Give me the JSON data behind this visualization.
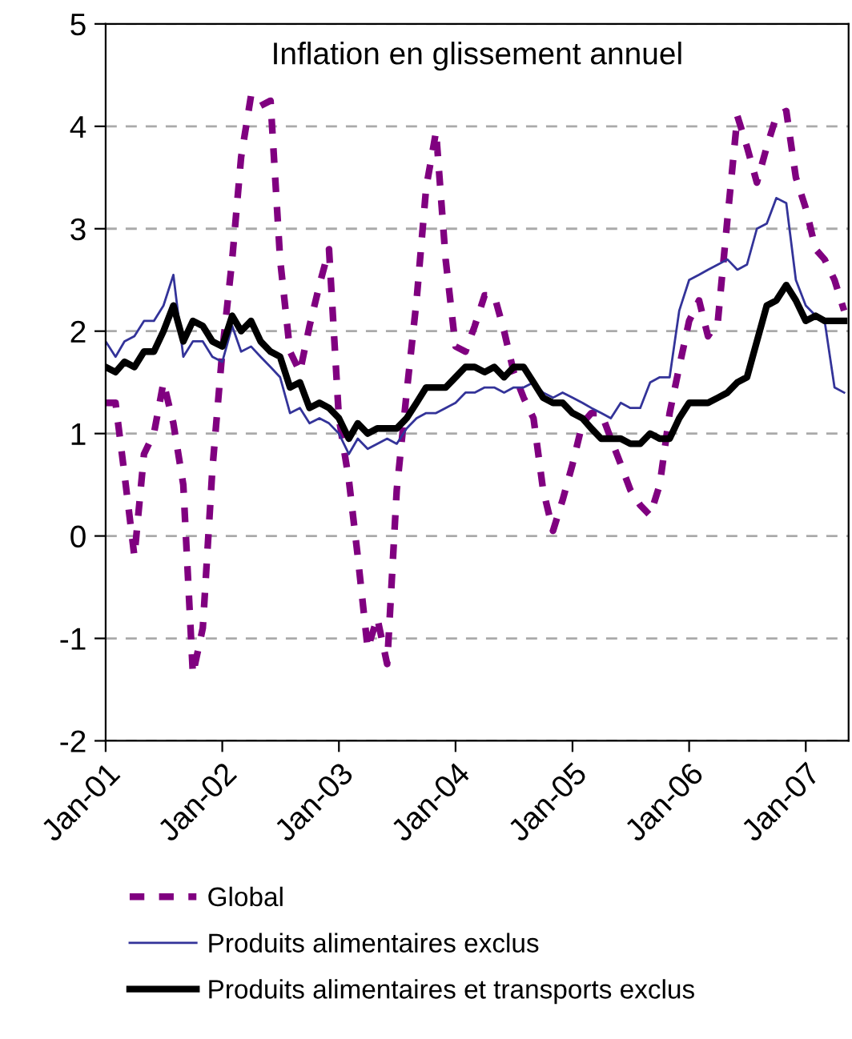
{
  "chart_data": {
    "type": "line",
    "title": "Inflation en glissement annuel",
    "x": [
      "2001-01",
      "2001-02",
      "2001-03",
      "2001-04",
      "2001-05",
      "2001-06",
      "2001-07",
      "2001-08",
      "2001-09",
      "2001-10",
      "2001-11",
      "2001-12",
      "2002-01",
      "2002-02",
      "2002-03",
      "2002-04",
      "2002-05",
      "2002-06",
      "2002-07",
      "2002-08",
      "2002-09",
      "2002-10",
      "2002-11",
      "2002-12",
      "2003-01",
      "2003-02",
      "2003-03",
      "2003-04",
      "2003-05",
      "2003-06",
      "2003-07",
      "2003-08",
      "2003-09",
      "2003-10",
      "2003-11",
      "2003-12",
      "2004-01",
      "2004-02",
      "2004-03",
      "2004-04",
      "2004-05",
      "2004-06",
      "2004-07",
      "2004-08",
      "2004-09",
      "2004-10",
      "2004-11",
      "2004-12",
      "2005-01",
      "2005-02",
      "2005-03",
      "2005-04",
      "2005-05",
      "2005-06",
      "2005-07",
      "2005-08",
      "2005-09",
      "2005-10",
      "2005-11",
      "2005-12",
      "2006-01",
      "2006-02",
      "2006-03",
      "2006-04",
      "2006-05",
      "2006-06",
      "2006-07",
      "2006-08",
      "2006-09",
      "2006-10",
      "2006-11",
      "2006-12",
      "2007-01",
      "2007-02",
      "2007-03",
      "2007-04",
      "2007-05"
    ],
    "series": [
      {
        "name": "Global",
        "color": "#800080",
        "line_style": "dashed",
        "values": [
          1.3,
          1.3,
          0.6,
          -0.2,
          0.8,
          1.0,
          1.5,
          1.1,
          0.5,
          -1.35,
          -0.9,
          0.65,
          1.8,
          2.7,
          3.7,
          4.3,
          4.2,
          4.25,
          2.7,
          1.8,
          1.6,
          2.05,
          2.45,
          2.8,
          1.15,
          0.55,
          -0.2,
          -1.1,
          -0.8,
          -1.25,
          0.45,
          1.4,
          2.3,
          3.4,
          3.95,
          2.7,
          1.85,
          1.8,
          2.05,
          2.35,
          2.35,
          2.0,
          1.6,
          1.35,
          1.15,
          0.45,
          0.05,
          0.35,
          0.7,
          1.1,
          1.2,
          1.2,
          0.95,
          0.7,
          0.45,
          0.3,
          0.2,
          0.5,
          1.2,
          1.65,
          2.1,
          2.3,
          1.95,
          2.1,
          3.1,
          4.1,
          3.8,
          3.45,
          3.8,
          4.1,
          4.15,
          3.5,
          3.2,
          2.8,
          2.7,
          2.5,
          2.2
        ]
      },
      {
        "name": "Produits alimentaires exclus",
        "color": "#333399",
        "line_style": "solid",
        "values": [
          1.9,
          1.75,
          1.9,
          1.95,
          2.1,
          2.1,
          2.25,
          2.55,
          1.75,
          1.9,
          1.9,
          1.75,
          1.7,
          2.05,
          1.8,
          1.85,
          1.75,
          1.65,
          1.55,
          1.2,
          1.25,
          1.1,
          1.15,
          1.1,
          1.0,
          0.8,
          0.95,
          0.85,
          0.9,
          0.95,
          0.9,
          1.05,
          1.15,
          1.2,
          1.2,
          1.25,
          1.3,
          1.4,
          1.4,
          1.45,
          1.45,
          1.4,
          1.45,
          1.45,
          1.5,
          1.4,
          1.35,
          1.4,
          1.35,
          1.3,
          1.25,
          1.2,
          1.15,
          1.3,
          1.25,
          1.25,
          1.5,
          1.55,
          1.55,
          2.2,
          2.5,
          2.55,
          2.6,
          2.65,
          2.7,
          2.6,
          2.65,
          3.0,
          3.05,
          3.3,
          3.25,
          2.5,
          2.25,
          2.15,
          2.1,
          1.45,
          1.4
        ]
      },
      {
        "name": "Produits alimentaires et transports exclus",
        "color": "#000000",
        "line_style": "solid",
        "values": [
          1.65,
          1.6,
          1.7,
          1.65,
          1.8,
          1.8,
          2.0,
          2.25,
          1.9,
          2.1,
          2.05,
          1.9,
          1.85,
          2.15,
          2.0,
          2.1,
          1.9,
          1.8,
          1.75,
          1.45,
          1.5,
          1.25,
          1.3,
          1.25,
          1.15,
          0.95,
          1.1,
          1.0,
          1.05,
          1.05,
          1.05,
          1.15,
          1.3,
          1.45,
          1.45,
          1.45,
          1.55,
          1.65,
          1.65,
          1.6,
          1.65,
          1.55,
          1.65,
          1.65,
          1.5,
          1.35,
          1.3,
          1.3,
          1.2,
          1.15,
          1.05,
          0.95,
          0.95,
          0.95,
          0.9,
          0.9,
          1.0,
          0.95,
          0.95,
          1.15,
          1.3,
          1.3,
          1.3,
          1.35,
          1.4,
          1.5,
          1.55,
          1.9,
          2.25,
          2.3,
          2.45,
          2.3,
          2.1,
          2.15,
          2.1,
          2.1,
          2.1
        ]
      }
    ],
    "xlim": [
      "2001-01",
      "2007-05-15"
    ],
    "xticks": [
      {
        "value": "2001-01",
        "label": "Jan-01"
      },
      {
        "value": "2002-01",
        "label": "Jan-02"
      },
      {
        "value": "2003-01",
        "label": "Jan-03"
      },
      {
        "value": "2004-01",
        "label": "Jan-04"
      },
      {
        "value": "2005-01",
        "label": "Jan-05"
      },
      {
        "value": "2006-01",
        "label": "Jan-06"
      },
      {
        "value": "2007-01",
        "label": "Jan-07"
      }
    ],
    "ylim": [
      -2,
      5
    ],
    "yticks": [
      -2,
      -1,
      0,
      1,
      2,
      3,
      4,
      5
    ],
    "grid": "y",
    "legend": "bottom",
    "marker": "none"
  }
}
